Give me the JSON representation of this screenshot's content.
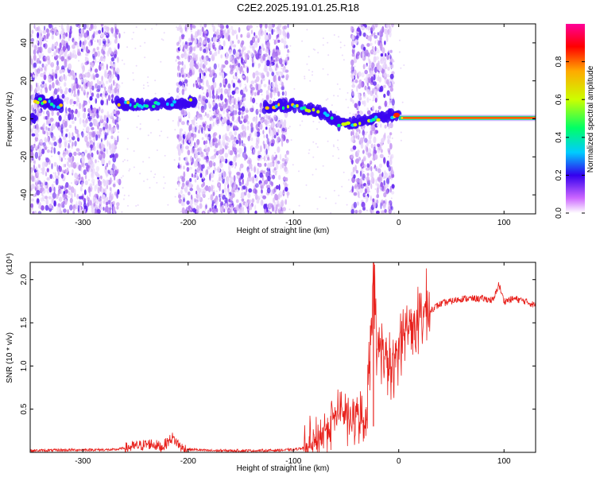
{
  "title": "C2E2.2025.191.01.25.R18",
  "chart_data": [
    {
      "type": "heatmap",
      "xlabel": "Height of straight line (km)",
      "ylabel": "Frequency (Hz)",
      "xlim": [
        -350,
        130
      ],
      "ylim": [
        -50,
        50
      ],
      "x_ticks": [
        "-300",
        "-200",
        "-100",
        "0",
        "100"
      ],
      "y_ticks": [
        "-40",
        "-20",
        "0",
        "20",
        "40"
      ],
      "colorbar": {
        "label": "Normalized spectral amplitude",
        "range": [
          0,
          1
        ],
        "ticks": [
          "0.0",
          "0.2",
          "0.4",
          "0.6",
          "0.8"
        ]
      },
      "ridge": [
        {
          "x": -345,
          "y": 10
        },
        {
          "x": -320,
          "y": 7
        },
        {
          "x": -265,
          "y": 8
        },
        {
          "x": -240,
          "y": 7
        },
        {
          "x": -220,
          "y": 8
        },
        {
          "x": -195,
          "y": 9
        },
        {
          "x": -125,
          "y": 6
        },
        {
          "x": -100,
          "y": 7
        },
        {
          "x": -85,
          "y": 5
        },
        {
          "x": -70,
          "y": 3
        },
        {
          "x": -55,
          "y": -3
        },
        {
          "x": -40,
          "y": -2
        },
        {
          "x": -25,
          "y": 0
        },
        {
          "x": -5,
          "y": 2
        },
        {
          "x": 0,
          "y": 1
        },
        {
          "x": 50,
          "y": 0
        },
        {
          "x": 130,
          "y": 0
        }
      ],
      "noise_bands": [
        {
          "x": [
            -350,
            -265
          ]
        },
        {
          "x": [
            -210,
            -105
          ]
        },
        {
          "x": [
            -45,
            -5
          ]
        }
      ]
    },
    {
      "type": "line",
      "xlabel": "Height of straight line (km)",
      "ylabel": "SNR (10 * v/v)",
      "y_multiplier": "(x10⁴)",
      "xlim": [
        -350,
        130
      ],
      "ylim": [
        0,
        2.2
      ],
      "x_ticks": [
        "-300",
        "-200",
        "-100",
        "0",
        "100"
      ],
      "y_ticks": [
        "0.5",
        "1.0",
        "1.5",
        "2.0"
      ],
      "series": [
        {
          "color": "#e8211c",
          "x": [
            -350,
            -300,
            -270,
            -250,
            -235,
            -225,
            -215,
            -205,
            -180,
            -130,
            -100,
            -80,
            -65,
            -55,
            -45,
            -38,
            -32,
            -27,
            -24,
            -21,
            -17,
            -12,
            -5,
            0,
            10,
            20,
            30,
            40,
            60,
            80,
            90,
            95,
            100,
            110,
            120,
            130
          ],
          "y": [
            0.02,
            0.03,
            0.03,
            0.07,
            0.1,
            0.06,
            0.17,
            0.04,
            0.02,
            0.02,
            0.03,
            0.08,
            0.35,
            0.5,
            0.35,
            0.45,
            0.3,
            1.2,
            2.2,
            1.1,
            1.3,
            1.05,
            0.9,
            1.3,
            1.45,
            1.55,
            1.65,
            1.72,
            1.78,
            1.78,
            1.76,
            1.95,
            1.75,
            1.78,
            1.75,
            1.7
          ]
        }
      ]
    }
  ]
}
